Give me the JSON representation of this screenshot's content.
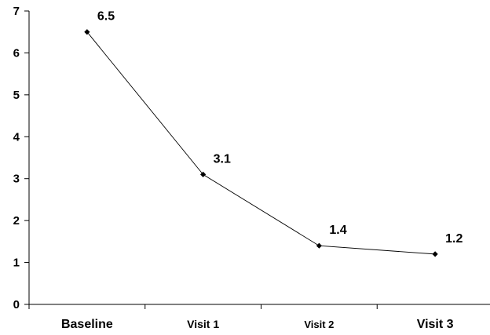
{
  "chart_data": {
    "type": "line",
    "title": "",
    "xlabel": "",
    "ylabel": "",
    "categories": [
      "Baseline",
      "Visit 1",
      "Visit 2",
      "Visit 3"
    ],
    "series": [
      {
        "values": [
          6.5,
          3.1,
          1.4,
          1.2
        ]
      }
    ],
    "data_labels": [
      "6.5",
      "3.1",
      "1.4",
      "1.2"
    ],
    "ylim": [
      0,
      7
    ],
    "yticks": [
      "0",
      "1",
      "2",
      "3",
      "4",
      "5",
      "6",
      "7"
    ],
    "grid": false,
    "legend": "none",
    "colors": {
      "line": "#000000",
      "marker": "#000000",
      "axis": "#000000"
    }
  }
}
